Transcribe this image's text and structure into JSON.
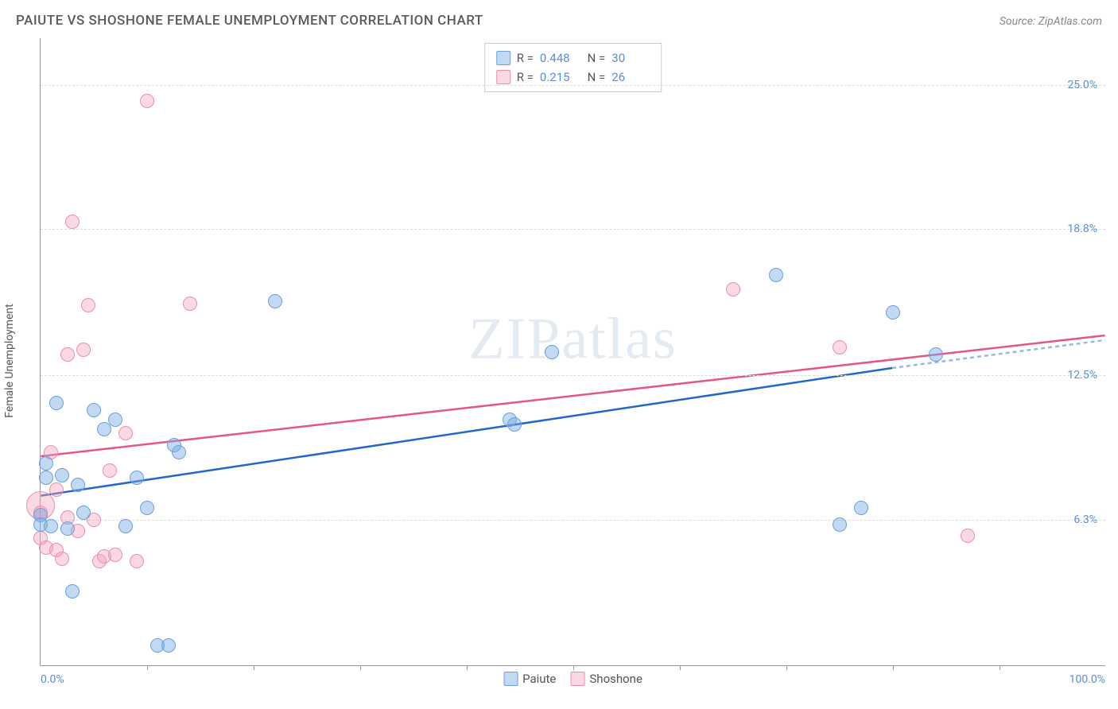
{
  "title": "PAIUTE VS SHOSHONE FEMALE UNEMPLOYMENT CORRELATION CHART",
  "source": "Source: ZipAtlas.com",
  "watermark": "ZIPatlas",
  "y_axis_label": "Female Unemployment",
  "chart": {
    "type": "scatter",
    "xlim": [
      0,
      100
    ],
    "ylim": [
      0,
      27
    ],
    "x_tick_labels": [
      {
        "pos": 0,
        "text": "0.0%"
      },
      {
        "pos": 100,
        "text": "100.0%"
      }
    ],
    "x_tick_marks": [
      10,
      20,
      30,
      40,
      50,
      60,
      70,
      80,
      90
    ],
    "y_ticks": [
      {
        "val": 6.3,
        "label": "6.3%"
      },
      {
        "val": 12.5,
        "label": "12.5%"
      },
      {
        "val": 18.8,
        "label": "18.8%"
      },
      {
        "val": 25.0,
        "label": "25.0%"
      }
    ],
    "grid_color": "#dddddd",
    "background_color": "#ffffff",
    "series": {
      "paiute": {
        "label": "Paiute",
        "fill": "rgba(120,170,230,0.45)",
        "stroke": "#6aa0de",
        "radius": 9,
        "trend_color": "#2367c9",
        "trend_dash_color": "#9bb9e0",
        "trend": {
          "x1": 0,
          "y1": 7.3,
          "x2": 80,
          "y2": 12.8,
          "x2d": 100,
          "y2d": 14.0
        },
        "R": "0.448",
        "N": "30",
        "points": [
          {
            "x": 0,
            "y": 6.5
          },
          {
            "x": 0,
            "y": 6.1
          },
          {
            "x": 0.5,
            "y": 8.1
          },
          {
            "x": 0.5,
            "y": 8.7
          },
          {
            "x": 1,
            "y": 6.0
          },
          {
            "x": 1.5,
            "y": 11.3
          },
          {
            "x": 2,
            "y": 8.2
          },
          {
            "x": 2.5,
            "y": 5.9
          },
          {
            "x": 3,
            "y": 3.2
          },
          {
            "x": 3.5,
            "y": 7.8
          },
          {
            "x": 4,
            "y": 6.6
          },
          {
            "x": 5,
            "y": 11.0
          },
          {
            "x": 6,
            "y": 10.2
          },
          {
            "x": 7,
            "y": 10.6
          },
          {
            "x": 8,
            "y": 6.0
          },
          {
            "x": 9,
            "y": 8.1
          },
          {
            "x": 10,
            "y": 6.8
          },
          {
            "x": 11,
            "y": 0.9
          },
          {
            "x": 12,
            "y": 0.9
          },
          {
            "x": 12.5,
            "y": 9.5
          },
          {
            "x": 13,
            "y": 9.2
          },
          {
            "x": 22,
            "y": 15.7
          },
          {
            "x": 44,
            "y": 10.6
          },
          {
            "x": 44.5,
            "y": 10.4
          },
          {
            "x": 48,
            "y": 13.5
          },
          {
            "x": 69,
            "y": 16.8
          },
          {
            "x": 75,
            "y": 6.1
          },
          {
            "x": 77,
            "y": 6.8
          },
          {
            "x": 80,
            "y": 15.2
          },
          {
            "x": 84,
            "y": 13.4
          }
        ]
      },
      "shoshone": {
        "label": "Shoshone",
        "fill": "rgba(245,160,185,0.40)",
        "stroke": "#e98fae",
        "radius": 9,
        "trend_color": "#e35686",
        "trend": {
          "x1": 0,
          "y1": 9.0,
          "x2": 100,
          "y2": 14.2
        },
        "R": "0.215",
        "N": "26",
        "points": [
          {
            "x": 0,
            "y": 6.6
          },
          {
            "x": 0,
            "y": 5.5
          },
          {
            "x": 0.5,
            "y": 5.1
          },
          {
            "x": 1,
            "y": 9.2
          },
          {
            "x": 1.5,
            "y": 5.0
          },
          {
            "x": 1.5,
            "y": 7.6
          },
          {
            "x": 2,
            "y": 4.6
          },
          {
            "x": 2.5,
            "y": 6.4
          },
          {
            "x": 2.5,
            "y": 13.4
          },
          {
            "x": 3,
            "y": 19.1
          },
          {
            "x": 3.5,
            "y": 5.8
          },
          {
            "x": 4,
            "y": 13.6
          },
          {
            "x": 4.5,
            "y": 15.5
          },
          {
            "x": 5,
            "y": 6.3
          },
          {
            "x": 5.5,
            "y": 4.5
          },
          {
            "x": 6,
            "y": 4.7
          },
          {
            "x": 6.5,
            "y": 8.4
          },
          {
            "x": 7,
            "y": 4.8
          },
          {
            "x": 8,
            "y": 10.0
          },
          {
            "x": 9,
            "y": 4.5
          },
          {
            "x": 10,
            "y": 24.3
          },
          {
            "x": 14,
            "y": 15.6
          },
          {
            "x": 65,
            "y": 16.2
          },
          {
            "x": 75,
            "y": 13.7
          },
          {
            "x": 87,
            "y": 5.6
          },
          {
            "x": 0,
            "y": 6.9,
            "r": 18
          }
        ]
      }
    }
  },
  "stats_box": {
    "rows": [
      {
        "swatch_fill": "rgba(120,170,230,0.45)",
        "swatch_stroke": "#6aa0de",
        "r_label": "R =",
        "r_val": "0.448",
        "n_label": "N =",
        "n_val": "30"
      },
      {
        "swatch_fill": "rgba(245,160,185,0.40)",
        "swatch_stroke": "#e98fae",
        "r_label": "R =",
        "r_val": "0.215",
        "n_label": "N =",
        "n_val": "26"
      }
    ]
  },
  "legend": [
    {
      "swatch_fill": "rgba(120,170,230,0.45)",
      "swatch_stroke": "#6aa0de",
      "label": "Paiute"
    },
    {
      "swatch_fill": "rgba(245,160,185,0.40)",
      "swatch_stroke": "#e98fae",
      "label": "Shoshone"
    }
  ]
}
